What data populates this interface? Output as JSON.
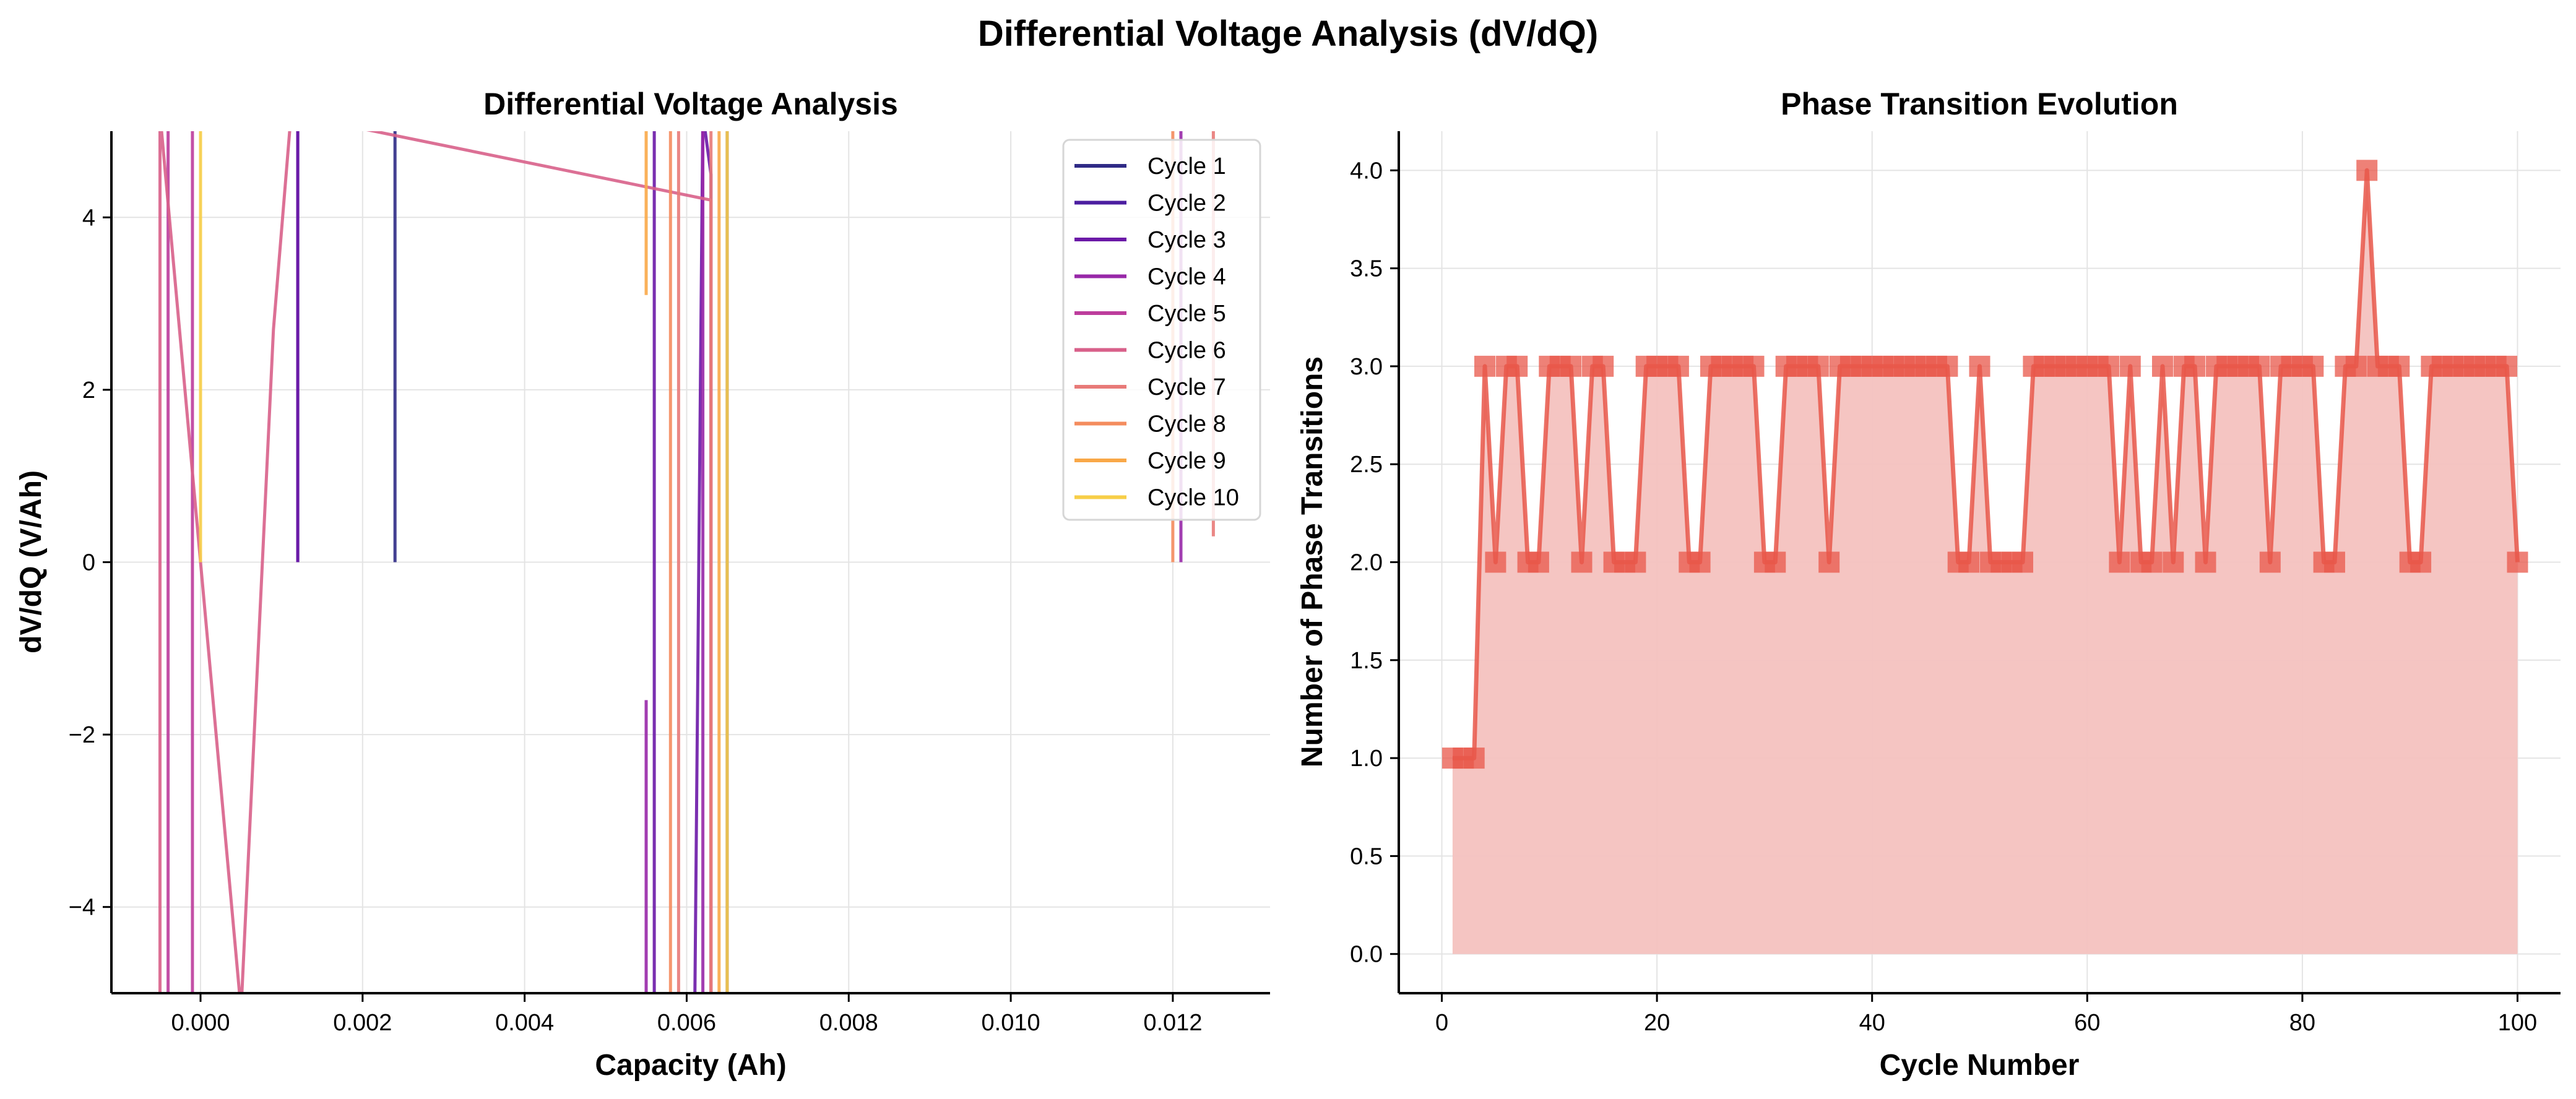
{
  "figure": {
    "suptitle": "Differential Voltage Analysis (dV/dQ)"
  },
  "colors": {
    "background": "#ffffff",
    "axis": "#000000",
    "grid": "#e4e4e4",
    "evolution_line": "#e8574a",
    "evolution_fill": "#f4c2bf"
  },
  "chart_data": [
    {
      "type": "line",
      "title": "Differential Voltage Analysis",
      "xlabel": "Capacity (Ah)",
      "ylabel": "dV/dQ (V/Ah)",
      "xlim": [
        -0.0011,
        0.0132
      ],
      "ylim": [
        -5,
        5
      ],
      "x_ticks": [
        0.0,
        0.002,
        0.004,
        0.006,
        0.008,
        0.01,
        0.012
      ],
      "x_tick_labels": [
        "0.000",
        "0.002",
        "0.004",
        "0.006",
        "0.008",
        "0.010",
        "0.012"
      ],
      "y_ticks": [
        -4,
        -2,
        0,
        2,
        4
      ],
      "y_tick_labels": [
        "−4",
        "−2",
        "0",
        "2",
        "4"
      ],
      "grid": true,
      "legend_position": "top-right",
      "series": [
        {
          "name": "Cycle 1",
          "color": "#2f2a86",
          "x": [
            0.0024,
            0.0024
          ],
          "y": [
            0,
            5.2
          ]
        },
        {
          "name": "Cycle 2",
          "color": "#4b1ea0",
          "x": [
            0.0012,
            0.0012,
            0.0065,
            0.0065
          ],
          "y": [
            0,
            5.2,
            5.2,
            -5.2
          ]
        },
        {
          "name": "Cycle 3",
          "color": "#6b18a7",
          "x": [
            0.0012,
            0.0012,
            0.0056,
            0.0056,
            0.0061,
            0.0062,
            0.0063,
            0.0063
          ],
          "y": [
            0,
            5.2,
            5.2,
            -5.2,
            -5.2,
            5.2,
            4.5,
            -5.2
          ]
        },
        {
          "name": "Cycle 4",
          "color": "#9828a8",
          "x": [
            0.0055,
            0.0055,
            0.0062,
            0.0062,
            0.0121,
            0.0121
          ],
          "y": [
            -1.6,
            -5.2,
            -5.2,
            5.2,
            5.2,
            0
          ]
        },
        {
          "name": "Cycle 5",
          "color": "#bd3d9c",
          "x": [
            -0.0004,
            -0.0004,
            -0.0001,
            -0.0001
          ],
          "y": [
            5.2,
            -5.2,
            -5.2,
            5.2
          ]
        },
        {
          "name": "Cycle 6",
          "color": "#d8608a",
          "x": [
            -0.0005,
            -0.0005,
            0.0005,
            0.0009,
            0.0011,
            0.0011,
            0.0063,
            0.0063
          ],
          "y": [
            -5.2,
            5.2,
            -5.2,
            2.7,
            5.0,
            5.2,
            4.2,
            -5.2
          ]
        },
        {
          "name": "Cycle 7",
          "color": "#e87a78",
          "x": [
            0.0059,
            0.0059,
            0.0063,
            0.0063,
            0.0125,
            0.0125
          ],
          "y": [
            5.2,
            -5.2,
            -5.2,
            5.2,
            5.2,
            0.3
          ]
        },
        {
          "name": "Cycle 8",
          "color": "#f48c5e",
          "x": [
            0.0058,
            0.0058,
            0.012,
            0.012
          ],
          "y": [
            -5.2,
            5.2,
            5.2,
            0
          ]
        },
        {
          "name": "Cycle 9",
          "color": "#f9a848",
          "x": [
            0.0055,
            0.0055,
            0.0064,
            0.0064
          ],
          "y": [
            3.1,
            5.2,
            5.2,
            -5.2
          ]
        },
        {
          "name": "Cycle 10",
          "color": "#f7ce47",
          "x": [
            0.0,
            0.0,
            0.0065,
            0.0065
          ],
          "y": [
            0,
            5.2,
            5.2,
            -5.2
          ]
        }
      ]
    },
    {
      "type": "area",
      "title": "Phase Transition Evolution",
      "xlabel": "Cycle Number",
      "ylabel": "Number of Phase Transitions",
      "xlim": [
        -4,
        104
      ],
      "ylim": [
        -0.2,
        4.2
      ],
      "x_ticks": [
        0,
        20,
        40,
        60,
        80,
        100
      ],
      "x_tick_labels": [
        "0",
        "20",
        "40",
        "60",
        "80",
        "100"
      ],
      "y_ticks": [
        0.0,
        0.5,
        1.0,
        1.5,
        2.0,
        2.5,
        3.0,
        3.5,
        4.0
      ],
      "y_tick_labels": [
        "0.0",
        "0.5",
        "1.0",
        "1.5",
        "2.0",
        "2.5",
        "3.0",
        "3.5",
        "4.0"
      ],
      "grid": true,
      "marker": "square",
      "x_start": 1,
      "values": [
        1,
        1,
        1,
        3,
        2,
        3,
        3,
        2,
        2,
        3,
        3,
        3,
        2,
        3,
        3,
        2,
        2,
        2,
        3,
        3,
        3,
        3,
        2,
        2,
        3,
        3,
        3,
        3,
        3,
        2,
        2,
        3,
        3,
        3,
        3,
        2,
        3,
        3,
        3,
        3,
        3,
        3,
        3,
        3,
        3,
        3,
        3,
        2,
        2,
        3,
        2,
        2,
        2,
        2,
        3,
        3,
        3,
        3,
        3,
        3,
        3,
        3,
        2,
        3,
        2,
        2,
        3,
        2,
        3,
        3,
        2,
        3,
        3,
        3,
        3,
        3,
        2,
        3,
        3,
        3,
        3,
        2,
        2,
        3,
        3,
        4,
        3,
        3,
        3,
        2,
        2,
        3,
        3,
        3,
        3,
        3,
        3,
        3,
        3,
        2
      ]
    }
  ]
}
